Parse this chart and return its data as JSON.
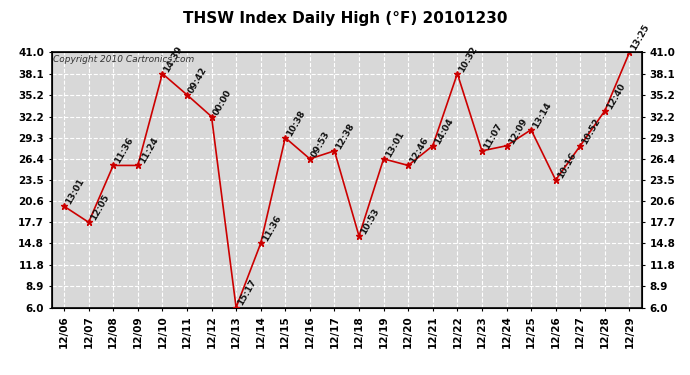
{
  "title": "THSW Index Daily High (°F) 20101230",
  "copyright": "Copyright 2010 Cartronics.com",
  "dates": [
    "12/06",
    "12/07",
    "12/08",
    "12/09",
    "12/10",
    "12/11",
    "12/12",
    "12/13",
    "12/14",
    "12/15",
    "12/16",
    "12/17",
    "12/18",
    "12/19",
    "12/20",
    "12/21",
    "12/22",
    "12/23",
    "12/24",
    "12/25",
    "12/26",
    "12/27",
    "12/28",
    "12/29"
  ],
  "values": [
    19.9,
    17.7,
    25.5,
    25.5,
    38.1,
    35.2,
    32.2,
    6.0,
    14.8,
    29.3,
    26.4,
    27.5,
    15.8,
    26.4,
    25.5,
    28.2,
    38.1,
    27.5,
    28.2,
    30.4,
    23.5,
    28.2,
    33.0,
    41.0
  ],
  "labels": [
    "13:01",
    "12:05",
    "11:36",
    "11:24",
    "14:39",
    "09:42",
    "00:00",
    "15:17",
    "11:36",
    "10:38",
    "09:53",
    "12:38",
    "10:53",
    "13:01",
    "12:46",
    "14:04",
    "10:32",
    "11:07",
    "12:09",
    "13:14",
    "10:16",
    "10:52",
    "12:40",
    "13:25"
  ],
  "ylim": [
    6.0,
    41.0
  ],
  "yticks": [
    6.0,
    8.9,
    11.8,
    14.8,
    17.7,
    20.6,
    23.5,
    26.4,
    29.3,
    32.2,
    35.2,
    38.1,
    41.0
  ],
  "line_color": "#cc0000",
  "marker_color": "#cc0000",
  "bg_color": "#ffffff",
  "plot_bg_color": "#d8d8d8",
  "grid_color": "#ffffff",
  "title_fontsize": 11,
  "label_fontsize": 6.5,
  "tick_fontsize": 7.5,
  "copyright_fontsize": 6.5
}
